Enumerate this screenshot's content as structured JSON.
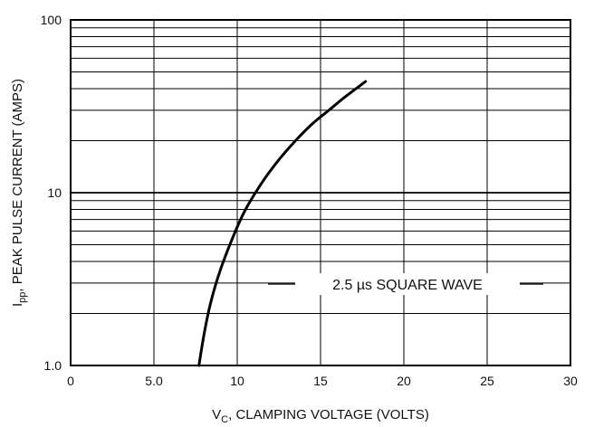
{
  "chart_data": {
    "type": "line",
    "xlabel": {
      "main": "V",
      "sub": "C",
      "rest": ", CLAMPING VOLTAGE (VOLTS)"
    },
    "ylabel": {
      "main": "I",
      "sub": "pp",
      "rest": ", PEAK PULSE CURRENT (AMPS)"
    },
    "xlim": [
      0,
      30
    ],
    "ylim": [
      1,
      100
    ],
    "y_scale": "log",
    "grid": true,
    "x_ticks": [
      {
        "value": 0,
        "label": "0"
      },
      {
        "value": 5,
        "label": "5.0"
      },
      {
        "value": 10,
        "label": "10"
      },
      {
        "value": 15,
        "label": "15"
      },
      {
        "value": 20,
        "label": "20"
      },
      {
        "value": 25,
        "label": "25"
      },
      {
        "value": 30,
        "label": "30"
      }
    ],
    "y_ticks": [
      {
        "value": 1,
        "label": "1.0"
      },
      {
        "value": 10,
        "label": "10"
      },
      {
        "value": 100,
        "label": "100"
      }
    ],
    "annotation": "2.5 µs SQUARE WAVE",
    "series": [
      {
        "x": [
          7.7,
          8.0,
          8.4,
          9.0,
          9.8,
          10.5,
          11.5,
          12.5,
          13.5,
          14.5,
          15.5,
          16.5,
          17.7
        ],
        "y": [
          1.0,
          1.5,
          2.3,
          3.6,
          5.7,
          8.0,
          11.5,
          15.5,
          20.0,
          25.0,
          30.0,
          36.0,
          44.0
        ]
      }
    ]
  }
}
